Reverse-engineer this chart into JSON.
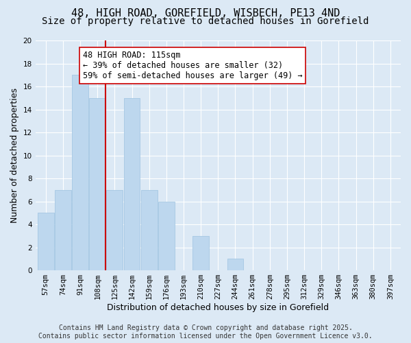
{
  "title": "48, HIGH ROAD, GOREFIELD, WISBECH, PE13 4ND",
  "subtitle": "Size of property relative to detached houses in Gorefield",
  "xlabel": "Distribution of detached houses by size in Gorefield",
  "ylabel": "Number of detached properties",
  "bin_labels": [
    "57sqm",
    "74sqm",
    "91sqm",
    "108sqm",
    "125sqm",
    "142sqm",
    "159sqm",
    "176sqm",
    "193sqm",
    "210sqm",
    "227sqm",
    "244sqm",
    "261sqm",
    "278sqm",
    "295sqm",
    "312sqm",
    "329sqm",
    "346sqm",
    "363sqm",
    "380sqm",
    "397sqm"
  ],
  "bar_values": [
    5,
    7,
    17,
    15,
    7,
    15,
    7,
    6,
    0,
    3,
    0,
    1,
    0,
    0,
    0,
    0,
    0,
    0,
    0,
    0,
    0
  ],
  "ylim": [
    0,
    20
  ],
  "yticks": [
    0,
    2,
    4,
    6,
    8,
    10,
    12,
    14,
    16,
    18,
    20
  ],
  "bar_color": "#bdd7ee",
  "bar_edge_color": "#9dc3e0",
  "vline_x_index": 3,
  "vline_color": "#cc0000",
  "annotation_text": "48 HIGH ROAD: 115sqm\n← 39% of detached houses are smaller (32)\n59% of semi-detached houses are larger (49) →",
  "annotation_box_color": "#ffffff",
  "annotation_box_edge": "#cc0000",
  "background_color": "#dce9f5",
  "plot_bg_color": "#dce9f5",
  "grid_color": "#ffffff",
  "footer_line1": "Contains HM Land Registry data © Crown copyright and database right 2025.",
  "footer_line2": "Contains public sector information licensed under the Open Government Licence v3.0.",
  "title_fontsize": 11,
  "subtitle_fontsize": 10,
  "axis_label_fontsize": 9,
  "tick_fontsize": 7.5,
  "annotation_fontsize": 8.5,
  "footer_fontsize": 7
}
